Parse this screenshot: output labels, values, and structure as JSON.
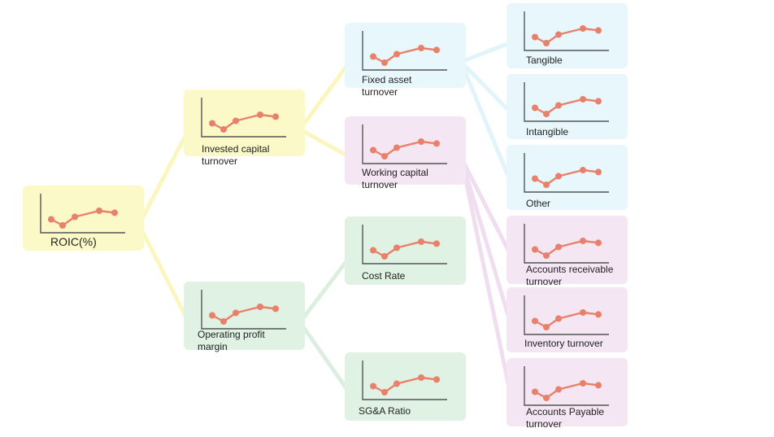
{
  "colors": {
    "yellow_fill": "#fcf9c8",
    "yellow_edge": "#fbf6bd",
    "green_fill": "#dff2e3",
    "green_edge": "#dcefdf",
    "blue_fill": "#e8f7fb",
    "blue_edge": "#e1f4f9",
    "pink_fill": "#f5e6f4",
    "pink_edge": "#f0def0",
    "trend": "#e8806a",
    "axis": "#555555"
  },
  "sparkline_pattern": [
    0.35,
    0.1,
    0.45,
    0.7,
    0.62
  ],
  "nodes": {
    "roic": {
      "label": "ROIC(%)",
      "color": "yellow"
    },
    "invested_capital_turnover": {
      "label": "Invested capital\nturnover",
      "color": "yellow"
    },
    "operating_profit_margin": {
      "label": "Operating profit\nmargin",
      "color": "green"
    },
    "fixed_asset_turnover": {
      "label": "Fixed asset\nturnover",
      "color": "blue"
    },
    "working_capital_turnover": {
      "label": "Working capital\nturnover",
      "color": "pink"
    },
    "cost_rate": {
      "label": "Cost Rate",
      "color": "green"
    },
    "sga_ratio": {
      "label": "SG&A Ratio",
      "color": "green"
    },
    "tangible": {
      "label": "Tangible",
      "color": "blue"
    },
    "intangible": {
      "label": "Intangible",
      "color": "blue"
    },
    "other": {
      "label": "Other",
      "color": "blue"
    },
    "accounts_receivable_turnover": {
      "label": "Accounts receivable\nturnover",
      "color": "pink"
    },
    "inventory_turnover": {
      "label": "Inventory turnover",
      "color": "pink"
    },
    "accounts_payable_turnover": {
      "label": "Accounts Payable\nturnover",
      "color": "pink"
    }
  },
  "edges": [
    {
      "from": "roic",
      "to": "invested_capital_turnover",
      "color": "yellow"
    },
    {
      "from": "roic",
      "to": "operating_profit_margin",
      "color": "yellow"
    },
    {
      "from": "invested_capital_turnover",
      "to": "fixed_asset_turnover",
      "color": "yellow"
    },
    {
      "from": "invested_capital_turnover",
      "to": "working_capital_turnover",
      "color": "yellow"
    },
    {
      "from": "operating_profit_margin",
      "to": "cost_rate",
      "color": "green"
    },
    {
      "from": "operating_profit_margin",
      "to": "sga_ratio",
      "color": "green"
    },
    {
      "from": "fixed_asset_turnover",
      "to": "tangible",
      "color": "blue"
    },
    {
      "from": "fixed_asset_turnover",
      "to": "intangible",
      "color": "blue"
    },
    {
      "from": "fixed_asset_turnover",
      "to": "other",
      "color": "blue"
    },
    {
      "from": "working_capital_turnover",
      "to": "accounts_receivable_turnover",
      "color": "pink"
    },
    {
      "from": "working_capital_turnover",
      "to": "inventory_turnover",
      "color": "pink"
    },
    {
      "from": "working_capital_turnover",
      "to": "accounts_payable_turnover",
      "color": "pink"
    }
  ]
}
